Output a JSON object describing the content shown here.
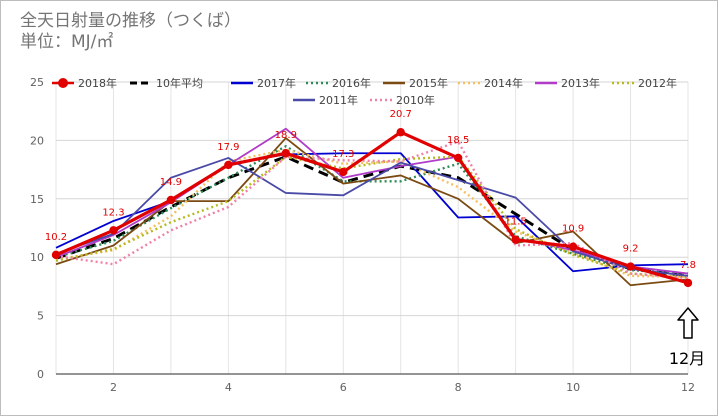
{
  "chart_data": {
    "type": "line",
    "title_line1": "全天日射量の推移（つくば）",
    "title_line2": "単位：MJ/㎡",
    "x": [
      1,
      2,
      3,
      4,
      5,
      6,
      7,
      8,
      9,
      10,
      11,
      12
    ],
    "xticks": [
      "2",
      "4",
      "6",
      "8",
      "10",
      "12"
    ],
    "xtick_values": [
      2,
      4,
      6,
      8,
      10,
      12
    ],
    "yticks": [
      "0",
      "5",
      "10",
      "15",
      "20",
      "25"
    ],
    "ytick_values": [
      0,
      5,
      10,
      15,
      20,
      25
    ],
    "xlim": [
      1,
      12
    ],
    "ylim": [
      0,
      25
    ],
    "grid": true,
    "legend_position": "top",
    "annotation": "12月",
    "series": [
      {
        "name": "2018年",
        "color": "#e00000",
        "style": "solid-marker",
        "values": [
          10.2,
          12.3,
          14.9,
          17.9,
          18.9,
          17.3,
          20.7,
          18.5,
          11.5,
          10.9,
          9.2,
          7.8
        ]
      },
      {
        "name": "10年平均",
        "color": "#000000",
        "style": "dash",
        "values": [
          9.9,
          11.6,
          14.3,
          16.8,
          18.6,
          16.4,
          17.8,
          16.8,
          13.7,
          10.6,
          9.0,
          8.4
        ]
      },
      {
        "name": "2017年",
        "color": "#0000d0",
        "style": "solid",
        "values": [
          10.8,
          13.1,
          14.8,
          18.0,
          18.8,
          18.9,
          18.9,
          13.4,
          13.5,
          8.8,
          9.3,
          9.4
        ]
      },
      {
        "name": "2016年",
        "color": "#2e8b57",
        "style": "dot",
        "values": [
          10.0,
          11.4,
          14.2,
          16.8,
          19.5,
          16.5,
          16.5,
          18.0,
          11.8,
          10.3,
          8.9,
          8.6
        ]
      },
      {
        "name": "2015年",
        "color": "#7b4a12",
        "style": "solid",
        "values": [
          9.4,
          11.0,
          14.8,
          14.8,
          20.2,
          16.3,
          17.0,
          15.0,
          11.2,
          12.2,
          7.6,
          8.1
        ]
      },
      {
        "name": "2014年",
        "color": "#f4c060",
        "style": "dot",
        "values": [
          9.8,
          10.6,
          13.5,
          18.2,
          19.2,
          18.0,
          18.2,
          16.0,
          12.2,
          10.4,
          8.4,
          8.3
        ]
      },
      {
        "name": "2013年",
        "color": "#b03cc8",
        "style": "solid",
        "values": [
          10.0,
          11.9,
          14.7,
          17.9,
          21.0,
          16.8,
          17.8,
          18.6,
          11.6,
          10.6,
          9.2,
          8.6
        ]
      },
      {
        "name": "2012年",
        "color": "#b8b820",
        "style": "dot",
        "values": [
          9.7,
          10.7,
          13.0,
          14.8,
          18.6,
          17.6,
          18.4,
          18.6,
          12.4,
          10.2,
          8.6,
          8.3
        ]
      },
      {
        "name": "2011年",
        "color": "#4a4aa8",
        "style": "solid",
        "values": [
          10.3,
          12.0,
          16.8,
          18.5,
          15.5,
          15.3,
          18.1,
          16.6,
          15.1,
          10.5,
          9.0,
          8.4
        ]
      },
      {
        "name": "2010年",
        "color": "#f080a8",
        "style": "dot",
        "values": [
          10.1,
          9.4,
          12.3,
          14.3,
          18.6,
          18.3,
          18.2,
          19.9,
          11.0,
          11.2,
          8.6,
          8.2
        ]
      }
    ],
    "data_labels": {
      "series": "2018年",
      "values": [
        "10.2",
        "12.3",
        "14.9",
        "17.9",
        "18.9",
        "17.3",
        "20.7",
        "18.5",
        "11.5",
        "10.9",
        "9.2",
        "7.8"
      ]
    }
  }
}
